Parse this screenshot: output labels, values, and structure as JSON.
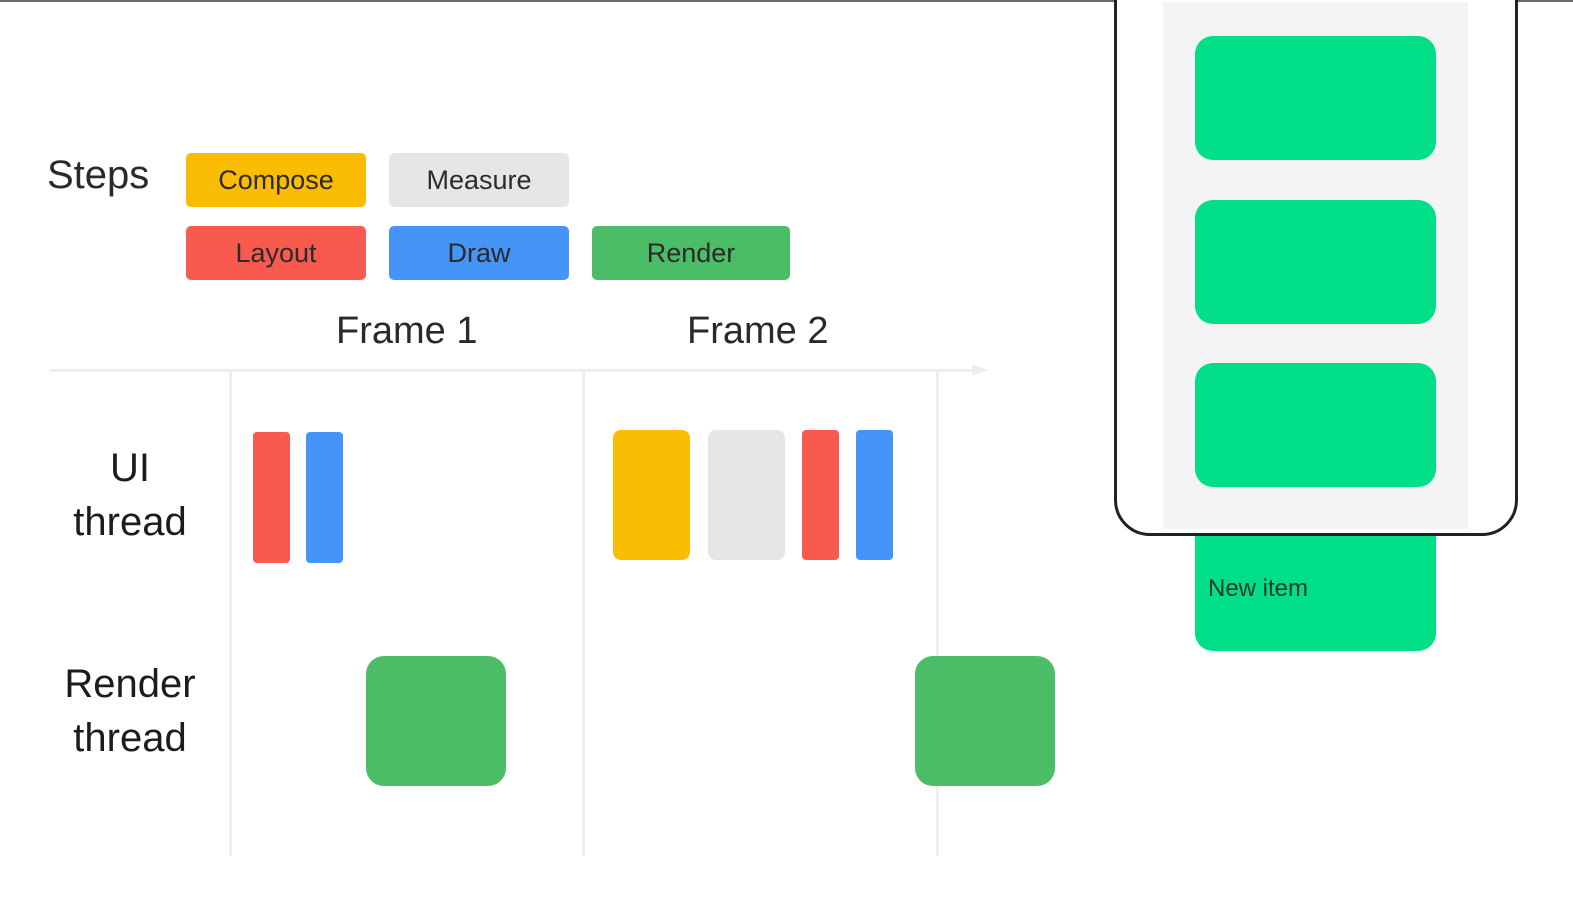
{
  "steps": {
    "title": "Steps",
    "items": [
      {
        "label": "Compose",
        "color": "#fbbc04"
      },
      {
        "label": "Measure",
        "color": "#e6e6e6"
      },
      {
        "label": "Layout",
        "color": "#f85a50"
      },
      {
        "label": "Draw",
        "color": "#4595f8"
      },
      {
        "label": "Render",
        "color": "#4bbd67"
      }
    ]
  },
  "timeline": {
    "frames": [
      "Frame 1",
      "Frame 2"
    ],
    "threads": [
      {
        "line1": "UI",
        "line2": "thread"
      },
      {
        "line1": "Render",
        "line2": "thread"
      }
    ],
    "frame1_ui_steps": [
      "Layout",
      "Draw"
    ],
    "frame2_ui_steps": [
      "Compose",
      "Measure",
      "Layout",
      "Draw"
    ],
    "render_thread_steps": [
      "Render",
      "Render"
    ]
  },
  "phone": {
    "card_color": "#00df88",
    "new_item_label": "New item"
  }
}
